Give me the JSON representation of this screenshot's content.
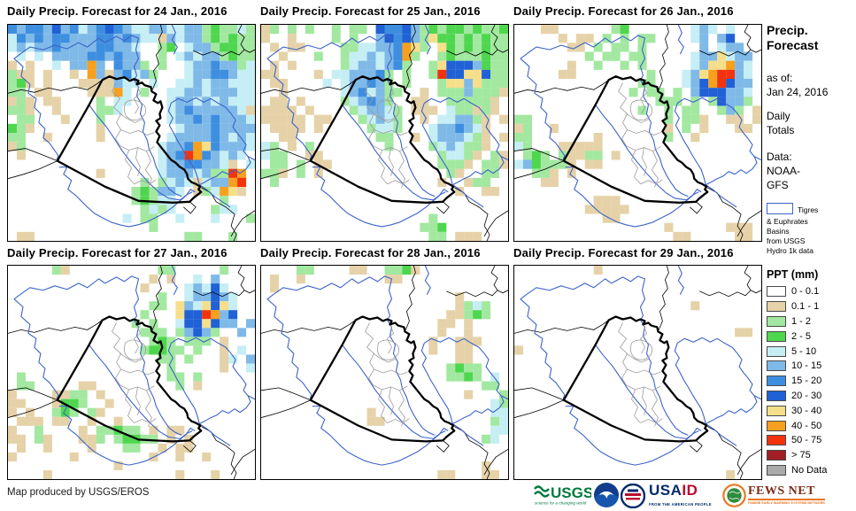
{
  "panels": [
    {
      "title": "Daily Precip. Forecast for 24 Jan., 2016",
      "rows": [
        "BbBBbDbBcbBDBbccbbccbbgGggcg",
        "cBbBbBBbbbBBbBbcctbcbbgGgGgg",
        "cbcbbBbbbbBBbbc..gG.cbbgGGgg",
        ".c.c.bbbbBBbBbb..g.cbcbbgGgg",
        "t.t..c.bbob.Bbbg.g..cbbBbbgc",
        "gtt.t..t.obtbBcbg...cbbBBbcc",
        "gGt.t...ttttbcc.c..ccbcbbccc",
        "gg.tt....tttoc.g..ccbbcbbbcc",
        "tgt.tt....g.cc....cbbcbcbccc",
        "ggt..t....ggc.....cbBbbbbbct",
        ".gg...t...g.......cbbBbBbbbc",
        "Ggt.......t........cbbbBbbbb",
        "gg..t.....t.......cbbbbBbcbc",
        "tg...............cbbBoyBbbbc",
        ".t...............cbBroBbcbc.",
        ".................cbbBBbbct.c",
        "..........t......cbbbcbggro.",
        "...............g.gcbctcbbor.",
        "..............gGgbbc.tgcoyt.",
        "..............gGgcc.....g...",
        "...............gcgc....gcc..",
        ".............c.gg..c...c...g",
        "................g...........",
        ".tt.................gg...g.."
      ]
    },
    {
      "title": "Daily Precip. Forecast for 25 Jan., 2016",
      "rows": [
        "tg.g.g..g.gg.DBBDbgGgGGgGggG",
        "t..t....g.g..bDBDbgyGGgGgGgg",
        ".t.tt....ggccbbBoyg.yGgGgGgg",
        "..t...g..gccbcbBog..gGgggGgg",
        ".t.t.....gcbbcbBg..gyDDDbGgg",
        "tt....t.ccbbbBg.g..grDDyyDgg",
        ".tt....c.cbbBbg.g...gyybyggg",
        "..t......cbBcbgg..t.gggbgggt",
        ".tt.t....gcbBbg..tt..gggggt.",
        "tttt.t....gcbbcg.ttt.cggtgt.",
        "ttttt.tt...gcbcg..t.ccbbgt.t",
        ".tttt.t.....gccg...cbbBbct..",
        "..tt.........gg..t.cbbbcgt.t",
        "cg.t.g........g....gcbcggt..",
        "cgg..tt.............gccgt.gt",
        ".gg.g.tt............gggt.ggt",
        "ggt.g.t..............gt..gg.",
        ".g..................t..tgg..",
        "......................t..tt.",
        "............................",
        "............................",
        "...................g........",
        "..................ggG.......",
        "...................gg.ttt..."
      ]
    },
    {
      "title": "Daily Precip. Forecast for 26 Jan., 2016",
      "rows": [
        "...tt......gG.......cbc.c...",
        ".....t.tt.g.g.gg....cb.bD...",
        "......tt.g.gg.g......b.cbb..",
        "........g.gg.gg.....cbbycbb.",
        "......t..g..g.g.....cbyyobc.",
        ".....tt........g...cbyorrbc.",
        "..............gg...cbDorDbb.",
        ".............g.gg.g.bDDDbbc.",
        "................ggg.g.gDbbg.",
        "..............g..g.gg..gbg.t",
        "gg...............g.ggt..tt.t",
        "tg..t............t.g.t...tt.",
        "gg.......t.......g..t.......",
        "cg...ttttt..................",
        ".gGg.gttgg.t................",
        "cbGgggt.tt..................",
        "..ggt.t.....................",
        "...tt.......................",
        "............................",
        ".........ttt................",
        "........ttttt...............",
        "..........tt................",
        ".................t......ttt.",
        "..................tt.....tt."
      ]
    },
    {
      "title": "Daily Precip. Forecast for 27 Jan., 2016",
      "rows": [
        ".....gt..........gg.....g...",
        "................t.t..c.b....",
        "...............t....cbcDc...",
        ".................g..cbbDbc..",
        "................gg.ybcyDyc..",
        "...............g...yDDrobD..",
        "..............g.g..cDDyDbb.b",
        "...............ggg.gbDbg..b.",
        "................gGg.ggg.t...",
        "...............gGGgg.g..t.c.",
        ".................gg.g...tc.b",
        "..................g.....t..c",
        ".g................gg.g......",
        ".gg.....tt.........g.t......",
        "t....ttgg.t.................",
        "tt...tGGg..t................",
        "t.t..gGg.gt.................",
        ".ttt.tt..t..t...............",
        "t..g....t.ggGgg.t.tt........",
        "tt.gt...ttg.gGGgg.t.t.......",
        ".t..t....t...gg..t.tt.......",
        "t......t........t..t..t.....",
        "............t...............",
        "....t..............t...t...."
      ]
    },
    {
      "title": "Daily Precip. Forecast for 28 Jan., 2016",
      "rows": [
        "....gg....tt..ggGt..........",
        ".t..t.........tt............",
        ".t..........................",
        "......................t.....",
        "......................tgcg..",
        ".....................ttgGg..",
        "....................tt.t....",
        "....................t..t....",
        "...................t..ttt...",
        "...................t..tt....",
        "......................tt....",
        ".....................gGgg...",
        ".....................ggGg.c.",
        ".........................gg.",
        ".......................t...g",
        "..........................cg",
        "............t.............cc",
        "............tt............gc",
        "..........................cc",
        ".........................gc.",
        "............................",
        "............................",
        ".........................t..",
        "....................tt...tt."
      ]
    },
    {
      "title": "Daily Precip. Forecast for 29 Jan., 2016",
      "rows": [
        ".........t..................",
        "............................",
        "............................",
        "............................",
        "....................t.......",
        "............................",
        "............................",
        ".........................tt.",
        "............................",
        "t...........................",
        "............................",
        "............................",
        "............................",
        "............................",
        "............................",
        "............................",
        "............................",
        "............................",
        "............................",
        "............................",
        "............................",
        "............................",
        "............................",
        "........................t..."
      ]
    }
  ],
  "cell_colors": {
    "t": "#E6D2A8",
    "g": "#A2E8A0",
    "G": "#4FD64F",
    "c": "#C6EEF5",
    "b": "#7FB9E8",
    "B": "#3E8EE0",
    "D": "#2161D6",
    "y": "#F6DF8B",
    "o": "#F6A01E",
    "r": "#F3330E",
    "m": "#A02025",
    "n": "#AAAAAA"
  },
  "sidebar": {
    "title_line1": "Precip.",
    "title_line2": "Forecast",
    "as_of_label": "as of:",
    "as_of_date": "Jan 24, 2016",
    "totals_line1": "Daily",
    "totals_line2": "Totals",
    "data_label": "Data:",
    "data_line1": "NOAA-",
    "data_line2": "GFS",
    "basin_symbol_color": "#3C64C8",
    "basin_note_line1": "Tigres",
    "basin_note_line2": "& Euphrates",
    "basin_note_line3": "Basins",
    "basin_note_line4": "from USGS",
    "basin_note_line5": "Hydro 1k data",
    "legend": {
      "title": "PPT (mm)",
      "items": [
        {
          "label": "0 - 0.1",
          "color": "#FFFFFF"
        },
        {
          "label": "0.1 - 1",
          "color": "#E6D2A8"
        },
        {
          "label": "1 - 2",
          "color": "#A2E8A0"
        },
        {
          "label": "2 - 5",
          "color": "#4FD64F"
        },
        {
          "label": "5 - 10",
          "color": "#C6EEF5"
        },
        {
          "label": "10 - 15",
          "color": "#7FB9E8"
        },
        {
          "label": "15 - 20",
          "color": "#3E8EE0"
        },
        {
          "label": "20 - 30",
          "color": "#2161D6"
        },
        {
          "label": "30 - 40",
          "color": "#F6DF8B"
        },
        {
          "label": "40 - 50",
          "color": "#F6A01E"
        },
        {
          "label": "50 - 75",
          "color": "#F3330E"
        },
        {
          "label": "> 75",
          "color": "#A02025"
        },
        {
          "label": "No Data",
          "color": "#AAAAAA"
        }
      ]
    }
  },
  "footer": {
    "credit": "Map produced by USGS/EROS",
    "usgs_text": "USGS",
    "usgs_tagline": "science for a changing world",
    "usaid_word_usa": "USA",
    "usaid_word_id": "ID",
    "usaid_tagline": "FROM THE AMERICAN PEOPLE",
    "fews_word": "FEWS NET",
    "fews_tagline": "FAMINE EARLY WARNING SYSTEMS NETWORK"
  }
}
